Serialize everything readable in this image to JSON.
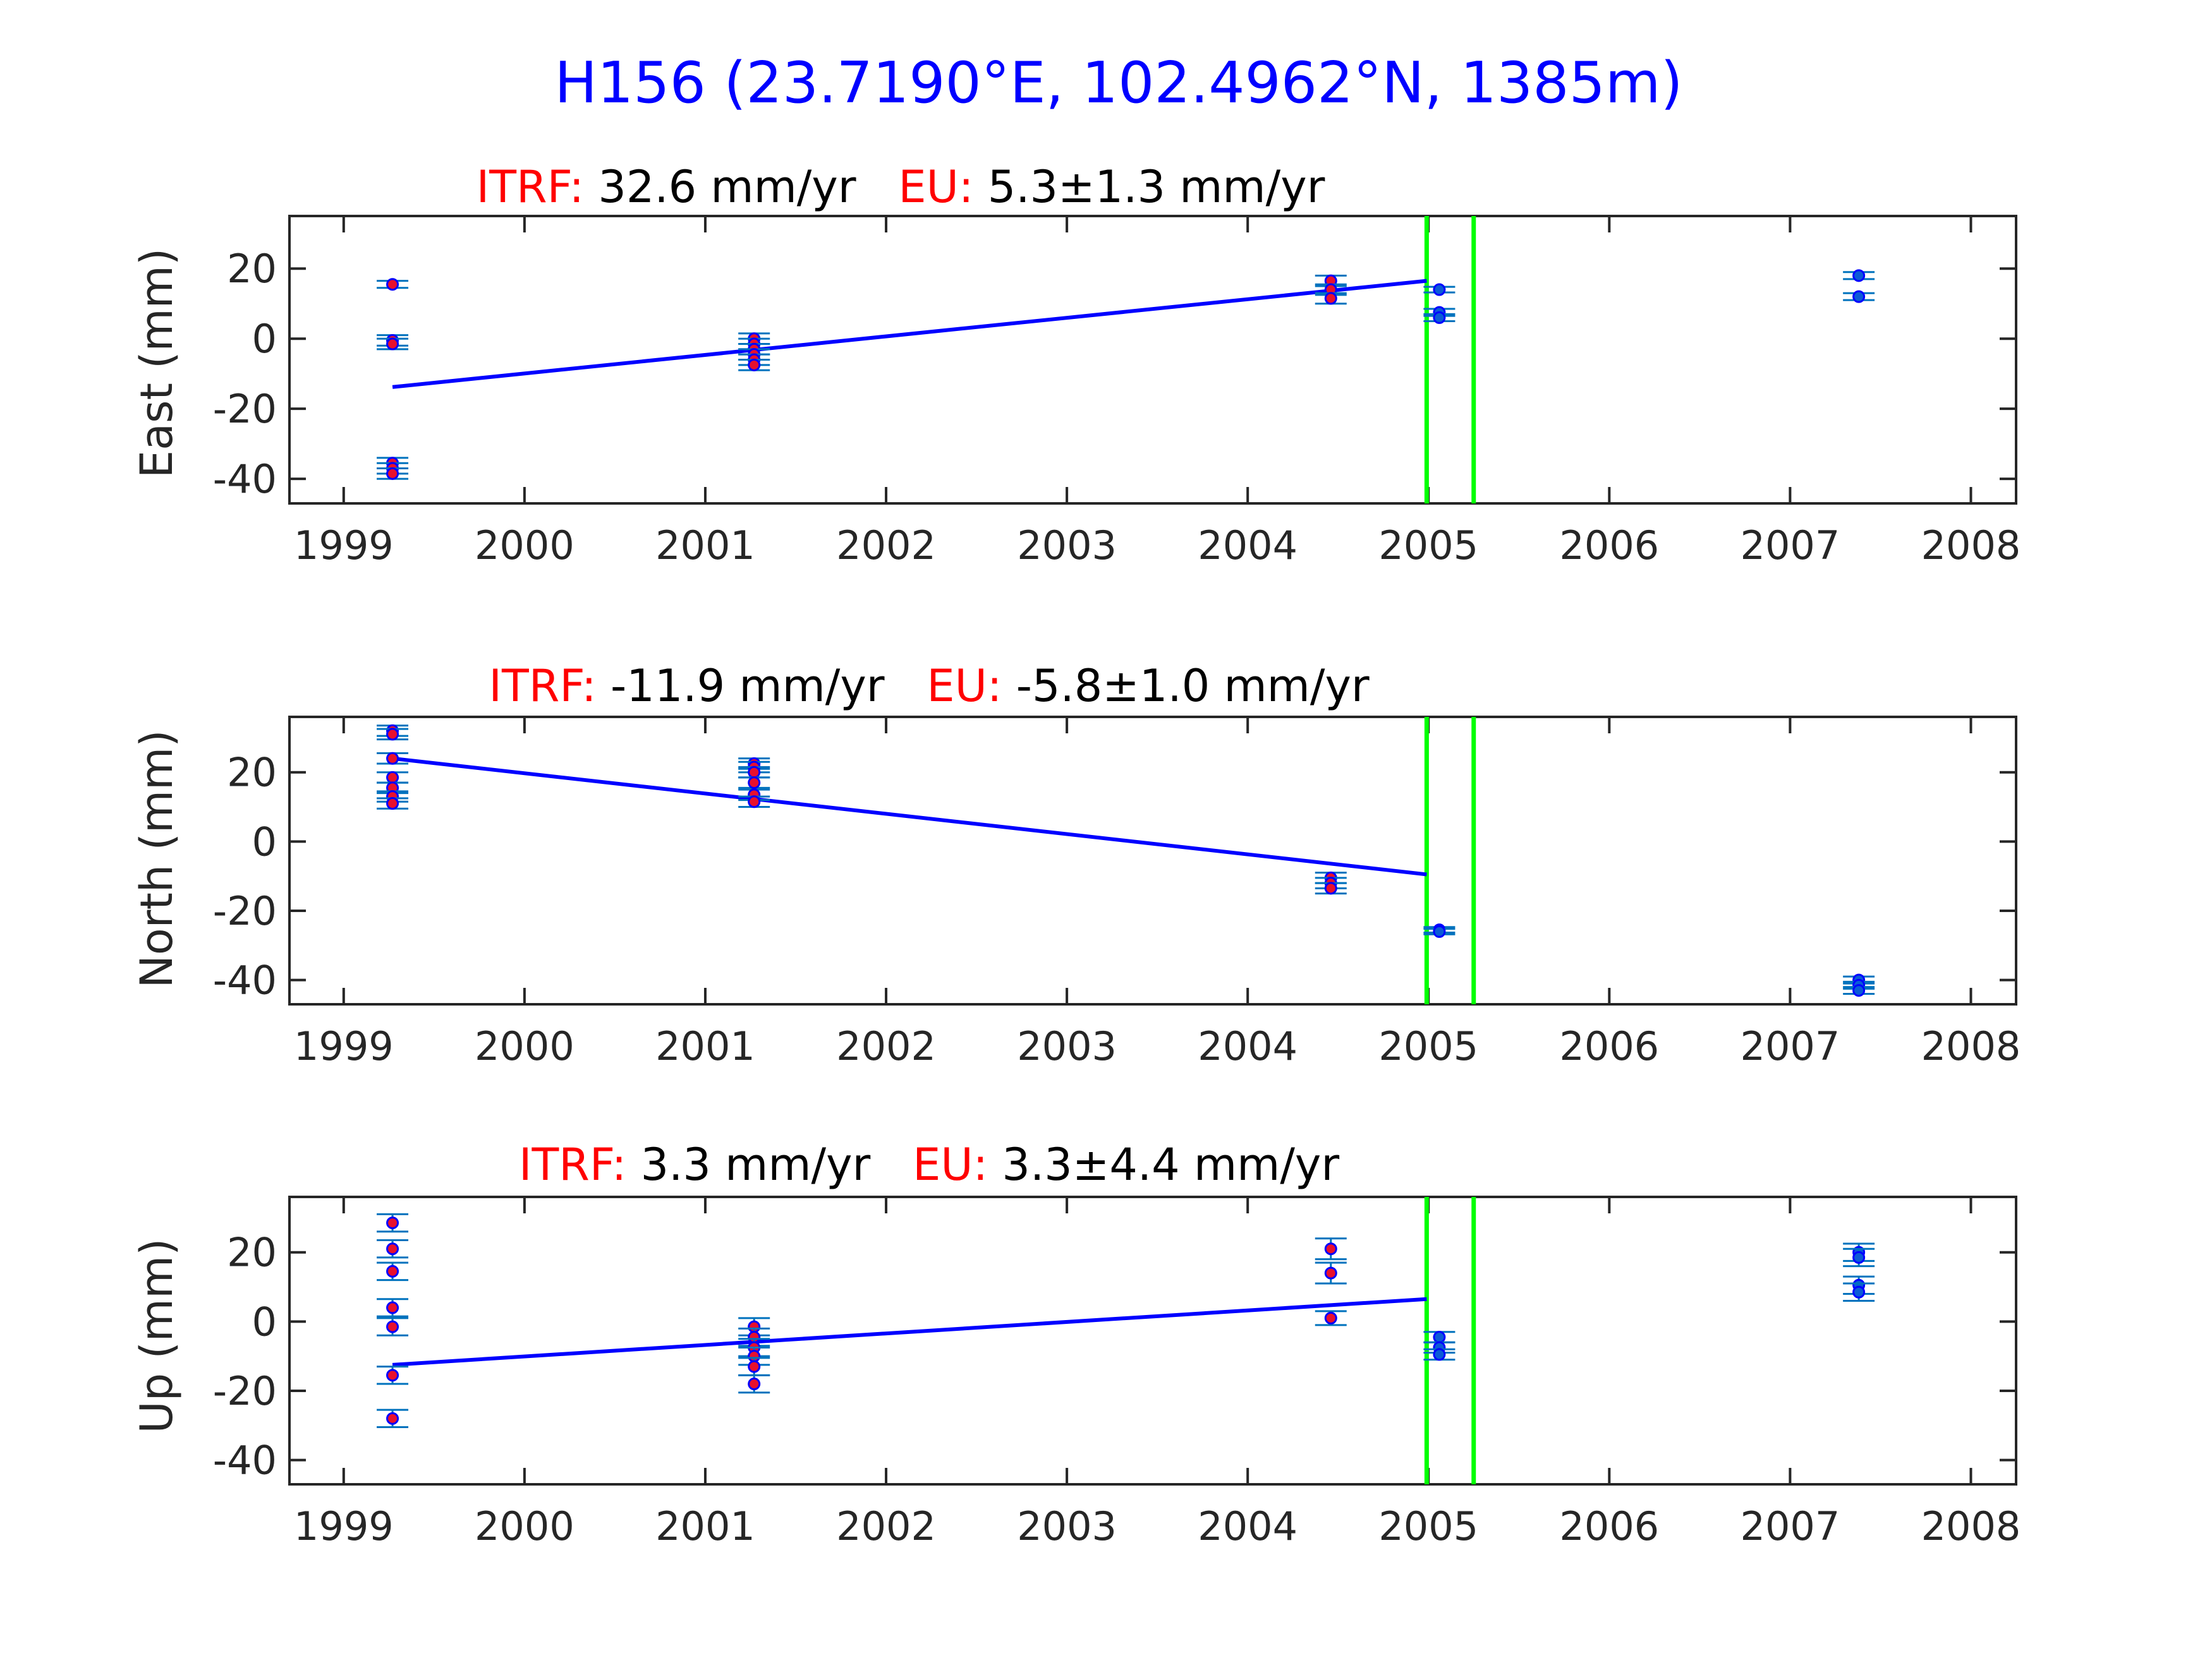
{
  "title": "H156 (23.7190°E, 102.4962°N, 1385m)",
  "colors": {
    "title": "#0000ff",
    "fit_line": "#0000ff",
    "event_line": "#00ff00",
    "errorbar": "#0072bd",
    "point_fill_red": "#e8102e",
    "point_fill_blue": "#0b5bd6",
    "rate_label": "#ff0000",
    "axis": "#262626"
  },
  "chart_data": [
    {
      "type": "scatter",
      "component": "east",
      "ylabel": "East (mm)",
      "title_parts": {
        "itrf_label": "ITRF:",
        "itrf_value": "32.6 mm/yr",
        "eu_label": "EU:",
        "eu_value": "5.3±1.3 mm/yr"
      },
      "xlim": [
        1998.7,
        2008.25
      ],
      "ylim": [
        -47,
        35
      ],
      "xticks": [
        1999,
        2000,
        2001,
        2002,
        2003,
        2004,
        2005,
        2006,
        2007,
        2008
      ],
      "yticks": [
        -40,
        -20,
        0,
        20
      ],
      "event_lines": [
        2004.99,
        2005.25
      ],
      "fit_line": {
        "x": [
          1999.27,
          2004.99
        ],
        "y": [
          -13.8,
          16.5
        ]
      },
      "points_before": [
        {
          "x": 1999.27,
          "y": 15.5,
          "err": 1.0
        },
        {
          "x": 1999.27,
          "y": -0.5,
          "err": 1.5
        },
        {
          "x": 1999.27,
          "y": -1.5,
          "err": 1.5
        },
        {
          "x": 1999.27,
          "y": -35.5,
          "err": 1.5
        },
        {
          "x": 1999.27,
          "y": -37.0,
          "err": 1.5
        },
        {
          "x": 1999.27,
          "y": -38.5,
          "err": 1.5
        },
        {
          "x": 2001.27,
          "y": 0.0,
          "err": 1.5
        },
        {
          "x": 2001.27,
          "y": -1.5,
          "err": 1.5
        },
        {
          "x": 2001.27,
          "y": -3.0,
          "err": 1.5
        },
        {
          "x": 2001.27,
          "y": -4.5,
          "err": 1.5
        },
        {
          "x": 2001.27,
          "y": -6.0,
          "err": 1.5
        },
        {
          "x": 2001.27,
          "y": -7.5,
          "err": 1.5
        },
        {
          "x": 2004.46,
          "y": 16.5,
          "err": 1.5
        },
        {
          "x": 2004.46,
          "y": 14.0,
          "err": 1.5
        },
        {
          "x": 2004.46,
          "y": 11.5,
          "err": 1.5
        }
      ],
      "points_after": [
        {
          "x": 2005.06,
          "y": 14.0,
          "err": 0.8
        },
        {
          "x": 2005.06,
          "y": 7.5,
          "err": 1.0
        },
        {
          "x": 2005.06,
          "y": 6.0,
          "err": 1.0
        },
        {
          "x": 2007.38,
          "y": 18.0,
          "err": 1.0
        },
        {
          "x": 2007.38,
          "y": 12.0,
          "err": 1.0
        }
      ]
    },
    {
      "type": "scatter",
      "component": "north",
      "ylabel": "North (mm)",
      "title_parts": {
        "itrf_label": "ITRF:",
        "itrf_value": "-11.9 mm/yr",
        "eu_label": "EU:",
        "eu_value": "-5.8±1.0 mm/yr"
      },
      "xlim": [
        1998.7,
        2008.25
      ],
      "ylim": [
        -47,
        36
      ],
      "xticks": [
        1999,
        2000,
        2001,
        2002,
        2003,
        2004,
        2005,
        2006,
        2007,
        2008
      ],
      "yticks": [
        -40,
        -20,
        0,
        20
      ],
      "event_lines": [
        2004.99,
        2005.25
      ],
      "fit_line": {
        "x": [
          1999.27,
          2004.99
        ],
        "y": [
          24.0,
          -9.5
        ]
      },
      "points_before": [
        {
          "x": 1999.27,
          "y": 32.0,
          "err": 1.5
        },
        {
          "x": 1999.27,
          "y": 31.0,
          "err": 1.5
        },
        {
          "x": 1999.27,
          "y": 24.0,
          "err": 1.5
        },
        {
          "x": 1999.27,
          "y": 18.5,
          "err": 1.5
        },
        {
          "x": 1999.27,
          "y": 15.5,
          "err": 1.5
        },
        {
          "x": 1999.27,
          "y": 13.0,
          "err": 1.5
        },
        {
          "x": 1999.27,
          "y": 11.0,
          "err": 1.5
        },
        {
          "x": 2001.27,
          "y": 22.5,
          "err": 1.5
        },
        {
          "x": 2001.27,
          "y": 21.5,
          "err": 1.5
        },
        {
          "x": 2001.27,
          "y": 20.0,
          "err": 1.5
        },
        {
          "x": 2001.27,
          "y": 17.0,
          "err": 1.5
        },
        {
          "x": 2001.27,
          "y": 13.5,
          "err": 1.5
        },
        {
          "x": 2001.27,
          "y": 11.5,
          "err": 1.5
        },
        {
          "x": 2004.46,
          "y": -10.5,
          "err": 1.5
        },
        {
          "x": 2004.46,
          "y": -12.0,
          "err": 1.5
        },
        {
          "x": 2004.46,
          "y": -13.5,
          "err": 1.5
        }
      ],
      "points_after": [
        {
          "x": 2005.06,
          "y": -25.5,
          "err": 0.8
        },
        {
          "x": 2005.06,
          "y": -26.0,
          "err": 0.8
        },
        {
          "x": 2007.38,
          "y": -40.0,
          "err": 1.0
        },
        {
          "x": 2007.38,
          "y": -41.5,
          "err": 1.0
        },
        {
          "x": 2007.38,
          "y": -43.0,
          "err": 1.0
        }
      ]
    },
    {
      "type": "scatter",
      "component": "up",
      "ylabel": "Up (mm)",
      "title_parts": {
        "itrf_label": "ITRF:",
        "itrf_value": "3.3 mm/yr",
        "eu_label": "EU:",
        "eu_value": "3.3±4.4 mm/yr"
      },
      "xlim": [
        1998.7,
        2008.25
      ],
      "ylim": [
        -47,
        36
      ],
      "xticks": [
        1999,
        2000,
        2001,
        2002,
        2003,
        2004,
        2005,
        2006,
        2007,
        2008
      ],
      "yticks": [
        -40,
        -20,
        0,
        20
      ],
      "event_lines": [
        2004.99,
        2005.25
      ],
      "fit_line": {
        "x": [
          1999.27,
          2004.99
        ],
        "y": [
          -12.5,
          6.5
        ]
      },
      "points_before": [
        {
          "x": 1999.27,
          "y": 28.5,
          "err": 2.5
        },
        {
          "x": 1999.27,
          "y": 21.0,
          "err": 2.5
        },
        {
          "x": 1999.27,
          "y": 14.5,
          "err": 2.5
        },
        {
          "x": 1999.27,
          "y": 4.0,
          "err": 2.5
        },
        {
          "x": 1999.27,
          "y": -1.5,
          "err": 2.5
        },
        {
          "x": 1999.27,
          "y": -15.5,
          "err": 2.5
        },
        {
          "x": 1999.27,
          "y": -28.0,
          "err": 2.5
        },
        {
          "x": 2001.27,
          "y": -1.5,
          "err": 2.5
        },
        {
          "x": 2001.27,
          "y": -4.5,
          "err": 2.5
        },
        {
          "x": 2001.27,
          "y": -7.5,
          "err": 2.5
        },
        {
          "x": 2001.27,
          "y": -10.0,
          "err": 2.5
        },
        {
          "x": 2001.27,
          "y": -13.0,
          "err": 2.5
        },
        {
          "x": 2001.27,
          "y": -18.0,
          "err": 2.5
        },
        {
          "x": 2004.46,
          "y": 21.0,
          "err": 3.0
        },
        {
          "x": 2004.46,
          "y": 14.0,
          "err": 3.0
        },
        {
          "x": 2004.46,
          "y": 1.0,
          "err": 2.0
        }
      ],
      "points_after": [
        {
          "x": 2005.06,
          "y": -4.5,
          "err": 1.5
        },
        {
          "x": 2005.06,
          "y": -7.5,
          "err": 1.5
        },
        {
          "x": 2005.06,
          "y": -9.5,
          "err": 1.5
        },
        {
          "x": 2007.38,
          "y": 20.0,
          "err": 2.5
        },
        {
          "x": 2007.38,
          "y": 18.5,
          "err": 2.5
        },
        {
          "x": 2007.38,
          "y": 10.5,
          "err": 2.5
        },
        {
          "x": 2007.38,
          "y": 8.5,
          "err": 2.5
        }
      ]
    }
  ]
}
